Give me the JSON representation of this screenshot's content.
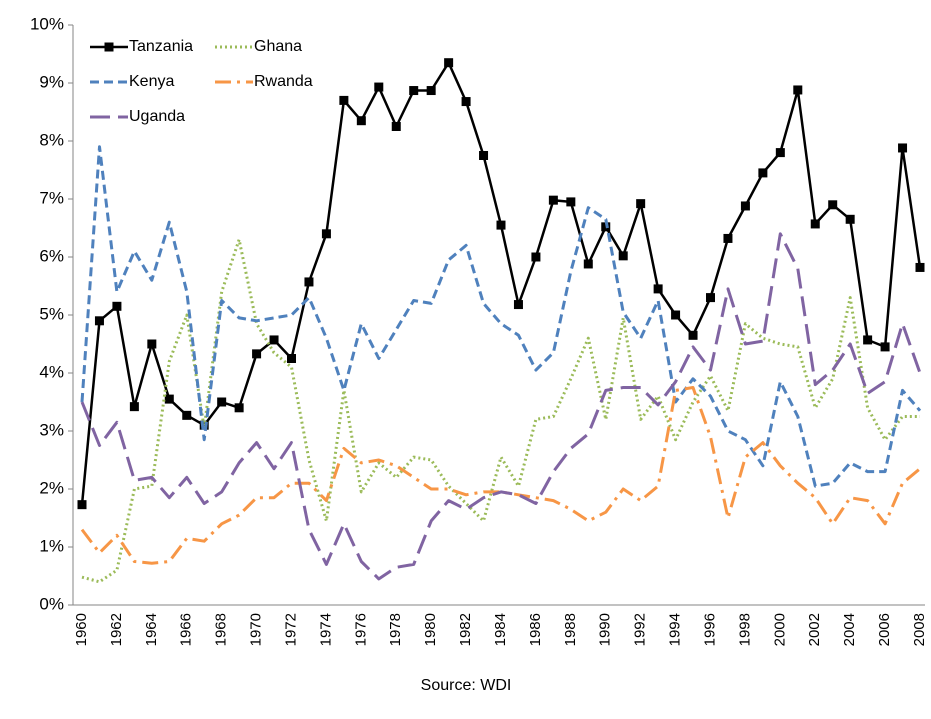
{
  "chart_data": {
    "type": "line",
    "source": "Source: WDI",
    "categories": [
      "1960",
      null,
      "1962",
      null,
      "1964",
      null,
      "1966",
      null,
      "1968",
      null,
      "1970",
      null,
      "1972",
      null,
      "1974",
      null,
      "1976",
      null,
      "1978",
      null,
      "1980",
      null,
      "1982",
      null,
      "1984",
      null,
      "1986",
      null,
      "1988",
      null,
      "1990",
      null,
      "1992",
      null,
      "1994",
      null,
      "1996",
      null,
      "1998",
      null,
      "2000",
      null,
      "2002",
      null,
      "2004",
      null,
      "2006",
      null,
      "2008"
    ],
    "series": [
      {
        "name": "Tanzania",
        "color": "#000000",
        "style": "solid",
        "marker": "square",
        "values": [
          1.73,
          4.9,
          5.15,
          3.42,
          4.5,
          3.55,
          3.27,
          3.1,
          3.5,
          3.4,
          4.33,
          4.57,
          4.25,
          5.57,
          6.4,
          8.7,
          8.35,
          8.93,
          8.25,
          8.87,
          8.87,
          9.35,
          8.68,
          7.75,
          6.55,
          5.18,
          6.0,
          6.98,
          6.95,
          5.88,
          6.52,
          6.02,
          6.92,
          5.45,
          5.0,
          4.65,
          5.3,
          6.32,
          6.88,
          7.45,
          7.8,
          8.88,
          6.57,
          6.9,
          6.65,
          4.57,
          4.45,
          7.88,
          5.82
        ]
      },
      {
        "name": "Ghana",
        "color": "#9bbb59",
        "style": "dotted",
        "values": [
          0.48,
          0.4,
          0.6,
          2.0,
          2.05,
          4.2,
          5.0,
          3.05,
          5.4,
          6.3,
          4.85,
          4.35,
          4.1,
          2.5,
          1.45,
          3.7,
          1.95,
          2.45,
          2.2,
          2.55,
          2.5,
          2.05,
          1.75,
          1.45,
          2.55,
          2.05,
          3.2,
          3.25,
          3.9,
          4.6,
          3.2,
          4.95,
          3.2,
          3.6,
          2.85,
          3.5,
          3.95,
          3.35,
          4.85,
          4.6,
          4.5,
          4.45,
          3.4,
          3.9,
          5.3,
          3.4,
          2.85,
          3.25,
          3.25
        ]
      },
      {
        "name": "Kenya",
        "color": "#4f81bd",
        "style": "dashed",
        "values": [
          3.5,
          7.9,
          5.4,
          6.1,
          5.6,
          6.6,
          5.4,
          2.85,
          5.25,
          4.95,
          4.9,
          4.95,
          5.0,
          5.3,
          4.6,
          3.7,
          4.85,
          4.25,
          4.75,
          5.25,
          5.2,
          5.95,
          6.2,
          5.2,
          4.85,
          4.65,
          4.05,
          4.35,
          5.75,
          6.85,
          6.65,
          5.05,
          4.6,
          5.25,
          3.5,
          3.9,
          3.6,
          3.0,
          2.85,
          2.4,
          3.85,
          3.25,
          2.05,
          2.1,
          2.45,
          2.3,
          2.3,
          3.7,
          3.35
        ]
      },
      {
        "name": "Rwanda",
        "color": "#f79646",
        "style": "dashdot",
        "values": [
          1.3,
          0.9,
          1.2,
          0.75,
          0.72,
          0.75,
          1.15,
          1.1,
          1.4,
          1.55,
          1.85,
          1.85,
          2.1,
          2.1,
          1.8,
          2.7,
          2.45,
          2.5,
          2.4,
          2.2,
          2.0,
          2.0,
          1.9,
          1.95,
          1.95,
          1.9,
          1.85,
          1.8,
          1.65,
          1.45,
          1.6,
          2.0,
          1.8,
          2.05,
          3.7,
          3.75,
          2.9,
          1.5,
          2.55,
          2.8,
          2.4,
          2.1,
          1.85,
          1.4,
          1.85,
          1.8,
          1.4,
          2.1,
          2.35
        ]
      },
      {
        "name": "Uganda",
        "color": "#8064a2",
        "style": "longdash",
        "values": [
          3.5,
          2.75,
          3.15,
          2.15,
          2.2,
          1.85,
          2.2,
          1.75,
          1.95,
          2.45,
          2.8,
          2.35,
          2.8,
          1.3,
          0.7,
          1.4,
          0.75,
          0.45,
          0.65,
          0.7,
          1.45,
          1.8,
          1.65,
          1.85,
          1.95,
          1.9,
          1.75,
          2.3,
          2.7,
          2.95,
          3.7,
          3.75,
          3.75,
          3.45,
          3.85,
          4.45,
          4.05,
          5.45,
          4.5,
          4.55,
          6.4,
          5.8,
          3.8,
          4.05,
          4.5,
          3.65,
          3.85,
          4.85,
          4.0
        ]
      }
    ],
    "ylim": [
      0,
      10
    ],
    "yticks": [
      {
        "value": 0,
        "label": "0%"
      },
      {
        "value": 1,
        "label": "1%"
      },
      {
        "value": 2,
        "label": "2%"
      },
      {
        "value": 3,
        "label": "3%"
      },
      {
        "value": 4,
        "label": "4%"
      },
      {
        "value": 5,
        "label": "5%"
      },
      {
        "value": 6,
        "label": "6%"
      },
      {
        "value": 7,
        "label": "7%"
      },
      {
        "value": 8,
        "label": "8%"
      },
      {
        "value": 9,
        "label": "9%"
      },
      {
        "value": 10,
        "label": "10%"
      }
    ],
    "grid": false,
    "legend": "top-left"
  }
}
